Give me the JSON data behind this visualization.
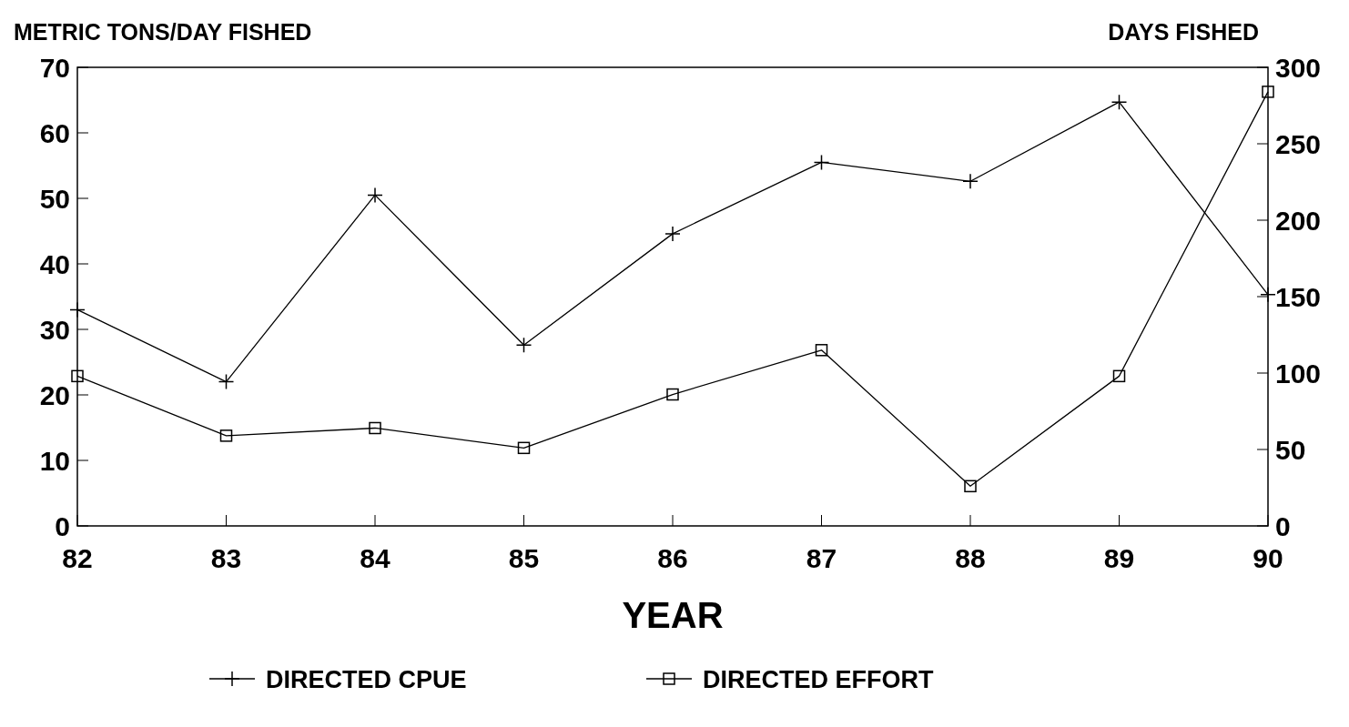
{
  "chart_data": {
    "type": "line",
    "ylabel": "METRIC TONS/DAY FISHED",
    "y2label": "DAYS FISHED",
    "xlabel": "YEAR",
    "x": [
      82,
      83,
      84,
      85,
      86,
      87,
      88,
      89,
      90
    ],
    "xlim": [
      82,
      90
    ],
    "xticks": [
      82,
      83,
      84,
      85,
      86,
      87,
      88,
      89,
      90
    ],
    "ylim": [
      0,
      70
    ],
    "yticks": [
      0,
      10,
      20,
      30,
      40,
      50,
      60,
      70
    ],
    "y2lim": [
      0,
      300
    ],
    "y2ticks": [
      0,
      50,
      100,
      150,
      200,
      250,
      300
    ],
    "legend": "bottom",
    "grid": false,
    "series": [
      {
        "name": "DIRECTED CPUE",
        "color": "#000000",
        "marker": "cross",
        "values": [
          33,
          22,
          50.5,
          27.6,
          44.6,
          55.5,
          52.6,
          64.7,
          35.3
        ]
      },
      {
        "name": "DIRECTED EFFORT",
        "color": "#000000",
        "marker": "square",
        "axis": "y2",
        "values": [
          98,
          59,
          64,
          51,
          86,
          115,
          26,
          98,
          284
        ]
      }
    ]
  }
}
